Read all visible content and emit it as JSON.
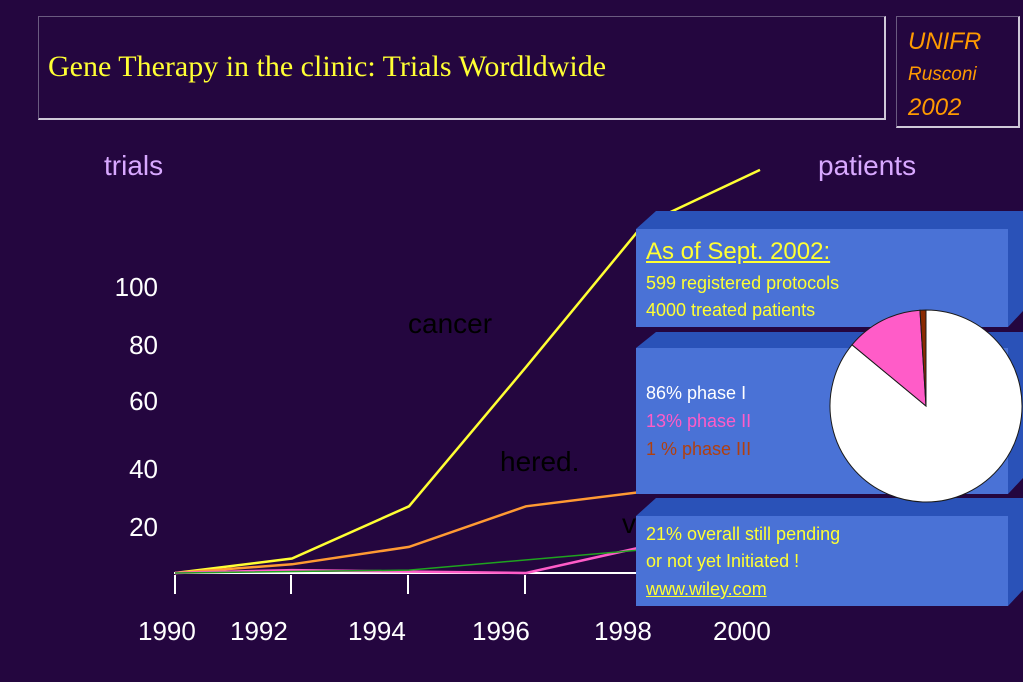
{
  "slide": {
    "title": "Gene Therapy in the clinic: Trials Wordldwide",
    "badge": {
      "line1": "UNIFR",
      "line2": "Rusconi",
      "line3": "2002"
    }
  },
  "chart": {
    "left_label": "trials",
    "right_label": "patients",
    "y_ticks": [
      "100",
      "80",
      "60",
      "40",
      "20"
    ],
    "x_ticks": [
      "1990",
      "1992",
      "1994",
      "1996",
      "1998",
      "2000"
    ],
    "series_labels": {
      "cancer": "cancer",
      "hered": "hered.",
      "viral": "v"
    },
    "colors": {
      "cancer": "#ffff33",
      "hered": "#ff9a33",
      "viral": "#ff5cc8",
      "other": "#1fa31f"
    }
  },
  "chart_data": {
    "type": "line",
    "x": [
      1990,
      1992,
      1994,
      1996,
      1998,
      2000
    ],
    "ylabel": "trials",
    "y_ticks": [
      20,
      40,
      60,
      80,
      100
    ],
    "series": [
      {
        "name": "cancer",
        "x": [
          1990,
          1992,
          1994,
          1996,
          1998,
          2000
        ],
        "y": [
          0,
          5,
          23,
          71,
          120,
          139
        ]
      },
      {
        "name": "hered.",
        "x": [
          1990,
          1992,
          1994,
          1996,
          1998
        ],
        "y": [
          0,
          3,
          9,
          23,
          28
        ]
      },
      {
        "name": "v",
        "x": [
          1990,
          1992,
          1996,
          1998
        ],
        "y": [
          0,
          1,
          0,
          9
        ]
      },
      {
        "x": [
          1990,
          1994,
          1998
        ],
        "y": [
          0,
          1,
          8
        ]
      }
    ]
  },
  "info": {
    "top": {
      "heading": "As of Sept. 2002:",
      "line1": "599 registered protocols",
      "line2": "4000 treated patients"
    },
    "phases": [
      {
        "text": "86% phase I",
        "color": "#ffffff",
        "value": 86
      },
      {
        "text": "13% phase II",
        "color": "#ff5cc8",
        "value": 13
      },
      {
        "text": "1 %  phase III",
        "color": "#b04010",
        "value": 1
      }
    ],
    "pie_colors": [
      "#ffffff",
      "#ff5cc8",
      "#8a2a00"
    ],
    "bottom": {
      "line1": "21% overall  still pending",
      "line2": "or not  yet Initiated !",
      "link": "www.wiley.com"
    }
  }
}
